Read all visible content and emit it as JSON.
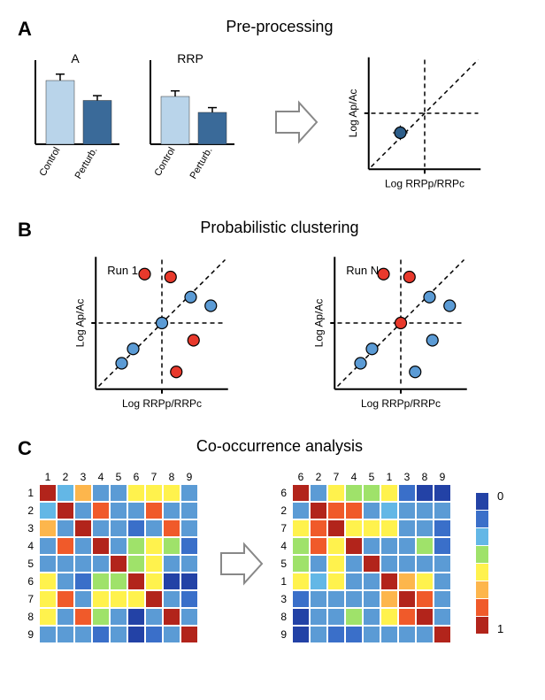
{
  "panelA": {
    "label": "A",
    "title": "Pre-processing",
    "barSet1": {
      "title": "A",
      "categories": [
        "Control",
        "Perturb."
      ],
      "values": [
        80,
        55
      ],
      "errors": [
        8,
        6
      ],
      "colors": [
        "#b9d4ea",
        "#3a6a99"
      ]
    },
    "barSet2": {
      "title": "RRP",
      "categories": [
        "Control",
        "Perturb."
      ],
      "values": [
        60,
        40
      ],
      "errors": [
        7,
        6
      ],
      "colors": [
        "#b9d4ea",
        "#3a6a99"
      ]
    },
    "scatter": {
      "xlabel": "Log RRPp/RRPc",
      "ylabel": "Log Ap/Ac",
      "point": {
        "x": -0.5,
        "y": -0.4,
        "ex": 0.15,
        "ey": 0.15,
        "color": "#2d5e8a"
      }
    }
  },
  "panelB": {
    "label": "B",
    "title": "Probabilistic clustering",
    "run1": {
      "label": "Run 1",
      "xlabel": "Log RRPp/RRPc",
      "ylabel": "Log Ap/Ac",
      "points": [
        {
          "x": -0.7,
          "y": -0.7,
          "color": "#5b9bd5"
        },
        {
          "x": -0.5,
          "y": -0.45,
          "color": "#5b9bd5"
        },
        {
          "x": -0.3,
          "y": 0.85,
          "color": "#e8392c"
        },
        {
          "x": 0.15,
          "y": 0.8,
          "color": "#e8392c"
        },
        {
          "x": 0.0,
          "y": 0.0,
          "color": "#5b9bd5"
        },
        {
          "x": 0.25,
          "y": -0.85,
          "color": "#e8392c"
        },
        {
          "x": 0.55,
          "y": -0.3,
          "color": "#e8392c"
        },
        {
          "x": 0.5,
          "y": 0.45,
          "color": "#5b9bd5"
        },
        {
          "x": 0.85,
          "y": 0.3,
          "color": "#5b9bd5"
        }
      ],
      "err": 0.1
    },
    "runN": {
      "label": "Run N",
      "xlabel": "Log RRPp/RRPc",
      "ylabel": "Log Ap/Ac",
      "points": [
        {
          "x": -0.7,
          "y": -0.7,
          "color": "#5b9bd5"
        },
        {
          "x": -0.5,
          "y": -0.45,
          "color": "#5b9bd5"
        },
        {
          "x": -0.3,
          "y": 0.85,
          "color": "#e8392c"
        },
        {
          "x": 0.15,
          "y": 0.8,
          "color": "#e8392c"
        },
        {
          "x": 0.0,
          "y": 0.0,
          "color": "#e8392c"
        },
        {
          "x": 0.25,
          "y": -0.85,
          "color": "#5b9bd5"
        },
        {
          "x": 0.55,
          "y": -0.3,
          "color": "#5b9bd5"
        },
        {
          "x": 0.5,
          "y": 0.45,
          "color": "#5b9bd5"
        },
        {
          "x": 0.85,
          "y": 0.3,
          "color": "#5b9bd5"
        }
      ],
      "err": 0.1
    }
  },
  "panelC": {
    "label": "C",
    "title": "Co-occurrence analysis",
    "labelsLeft": [
      "1",
      "2",
      "3",
      "4",
      "5",
      "6",
      "7",
      "8",
      "9"
    ],
    "labelsRight": [
      "6",
      "2",
      "7",
      "4",
      "5",
      "1",
      "3",
      "8",
      "9"
    ],
    "colorbar": {
      "colors": [
        "#2342a6",
        "#3a6fc9",
        "#63b7e6",
        "#9fe26a",
        "#fff24d",
        "#fdb64c",
        "#f05a2a",
        "#b2241b"
      ],
      "minLabel": "0",
      "maxLabel": "1"
    },
    "matrixLeft": [
      [
        "#b2241b",
        "#63b7e6",
        "#fdb64c",
        "#5b9bd5",
        "#5b9bd5",
        "#fff24d",
        "#fff24d",
        "#fff24d",
        "#5b9bd5"
      ],
      [
        "#63b7e6",
        "#b2241b",
        "#5b9bd5",
        "#f05a2a",
        "#5b9bd5",
        "#5b9bd5",
        "#f05a2a",
        "#5b9bd5",
        "#5b9bd5"
      ],
      [
        "#fdb64c",
        "#5b9bd5",
        "#b2241b",
        "#5b9bd5",
        "#5b9bd5",
        "#3a6fc9",
        "#5b9bd5",
        "#f05a2a",
        "#5b9bd5"
      ],
      [
        "#5b9bd5",
        "#f05a2a",
        "#5b9bd5",
        "#b2241b",
        "#5b9bd5",
        "#9fe26a",
        "#fff24d",
        "#9fe26a",
        "#3a6fc9"
      ],
      [
        "#5b9bd5",
        "#5b9bd5",
        "#5b9bd5",
        "#5b9bd5",
        "#b2241b",
        "#9fe26a",
        "#fff24d",
        "#5b9bd5",
        "#5b9bd5"
      ],
      [
        "#fff24d",
        "#5b9bd5",
        "#3a6fc9",
        "#9fe26a",
        "#9fe26a",
        "#b2241b",
        "#fff24d",
        "#2342a6",
        "#2342a6"
      ],
      [
        "#fff24d",
        "#f05a2a",
        "#5b9bd5",
        "#fff24d",
        "#fff24d",
        "#fff24d",
        "#b2241b",
        "#5b9bd5",
        "#3a6fc9"
      ],
      [
        "#fff24d",
        "#5b9bd5",
        "#f05a2a",
        "#9fe26a",
        "#5b9bd5",
        "#2342a6",
        "#5b9bd5",
        "#b2241b",
        "#5b9bd5"
      ],
      [
        "#5b9bd5",
        "#5b9bd5",
        "#5b9bd5",
        "#3a6fc9",
        "#5b9bd5",
        "#2342a6",
        "#3a6fc9",
        "#5b9bd5",
        "#b2241b"
      ]
    ],
    "matrixRight": [
      [
        "#b2241b",
        "#5b9bd5",
        "#fff24d",
        "#9fe26a",
        "#9fe26a",
        "#fff24d",
        "#3a6fc9",
        "#2342a6",
        "#2342a6"
      ],
      [
        "#5b9bd5",
        "#b2241b",
        "#f05a2a",
        "#f05a2a",
        "#5b9bd5",
        "#63b7e6",
        "#5b9bd5",
        "#5b9bd5",
        "#5b9bd5"
      ],
      [
        "#fff24d",
        "#f05a2a",
        "#b2241b",
        "#fff24d",
        "#fff24d",
        "#fff24d",
        "#5b9bd5",
        "#5b9bd5",
        "#3a6fc9"
      ],
      [
        "#9fe26a",
        "#f05a2a",
        "#fff24d",
        "#b2241b",
        "#5b9bd5",
        "#5b9bd5",
        "#5b9bd5",
        "#9fe26a",
        "#3a6fc9"
      ],
      [
        "#9fe26a",
        "#5b9bd5",
        "#fff24d",
        "#5b9bd5",
        "#b2241b",
        "#5b9bd5",
        "#5b9bd5",
        "#5b9bd5",
        "#5b9bd5"
      ],
      [
        "#fff24d",
        "#63b7e6",
        "#fff24d",
        "#5b9bd5",
        "#5b9bd5",
        "#b2241b",
        "#fdb64c",
        "#fff24d",
        "#5b9bd5"
      ],
      [
        "#3a6fc9",
        "#5b9bd5",
        "#5b9bd5",
        "#5b9bd5",
        "#5b9bd5",
        "#fdb64c",
        "#b2241b",
        "#f05a2a",
        "#5b9bd5"
      ],
      [
        "#2342a6",
        "#5b9bd5",
        "#5b9bd5",
        "#9fe26a",
        "#5b9bd5",
        "#fff24d",
        "#f05a2a",
        "#b2241b",
        "#5b9bd5"
      ],
      [
        "#2342a6",
        "#5b9bd5",
        "#3a6fc9",
        "#3a6fc9",
        "#5b9bd5",
        "#5b9bd5",
        "#5b9bd5",
        "#5b9bd5",
        "#b2241b"
      ]
    ]
  }
}
